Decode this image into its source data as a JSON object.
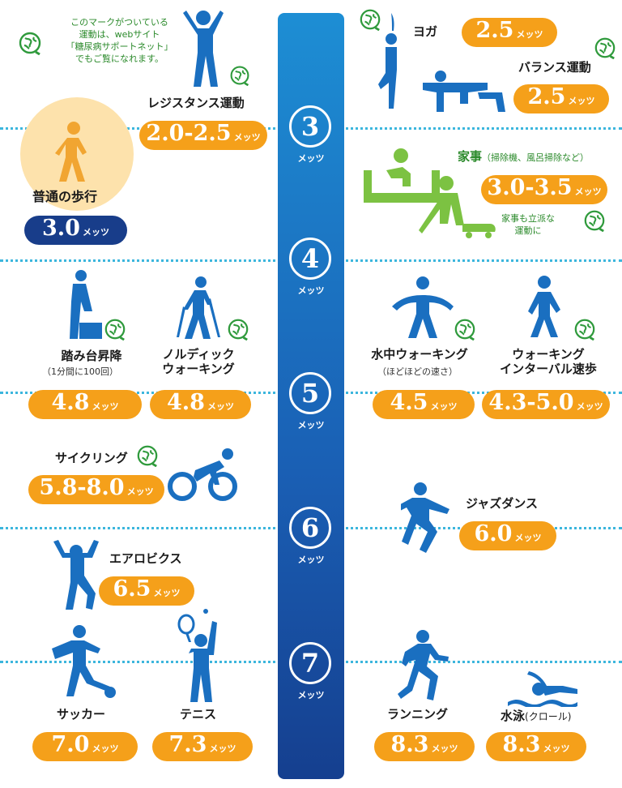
{
  "note": {
    "line1": "このマークがついている",
    "line2": "運動は、webサイト",
    "line3": "「糖尿病サポートネット」",
    "line4": "でもご覧になれます。"
  },
  "unit": "メッツ",
  "scale": [
    "3",
    "4",
    "5",
    "6",
    "7"
  ],
  "activities": [
    {
      "name": "レジスタンス運動",
      "value": "2.0-2.5"
    },
    {
      "name": "普通の歩行",
      "value": "3.0"
    },
    {
      "name": "ヨガ",
      "value": "2.5"
    },
    {
      "name": "バランス運動",
      "value": "2.5"
    },
    {
      "name": "家事",
      "name_sub": "（掃除機、風呂掃除など）",
      "value": "3.0-3.5"
    },
    {
      "name": "踏み台昇降",
      "name_sub": "（1分間に100回）",
      "value": "4.8"
    },
    {
      "name_line1": "ノルディック",
      "name_line2": "ウォーキング",
      "value": "4.8"
    },
    {
      "name": "水中ウォーキング",
      "name_sub": "（ほどほどの速さ）",
      "value": "4.5"
    },
    {
      "name_line1": "ウォーキング",
      "name_line2": "インターバル速歩",
      "value": "4.3-5.0"
    },
    {
      "name": "サイクリング",
      "value": "5.8-8.0"
    },
    {
      "name": "ジャズダンス",
      "value": "6.0"
    },
    {
      "name": "エアロビクス",
      "value": "6.5"
    },
    {
      "name": "サッカー",
      "value": "7.0"
    },
    {
      "name": "テニス",
      "value": "7.3"
    },
    {
      "name": "ランニング",
      "value": "8.3"
    },
    {
      "name": "水泳",
      "name_sub": "(クロール)",
      "value": "8.3"
    }
  ],
  "housework_note": {
    "line1": "家事も立派な",
    "line2": "運動に"
  },
  "icons": [
    "globe-icon",
    "person-figure-icon"
  ],
  "colors": {
    "blue": "#1a6fc0",
    "orange": "#f5a01a",
    "navy": "#183d8a",
    "green": "#2b8a2b",
    "walk": "#f1a531"
  }
}
